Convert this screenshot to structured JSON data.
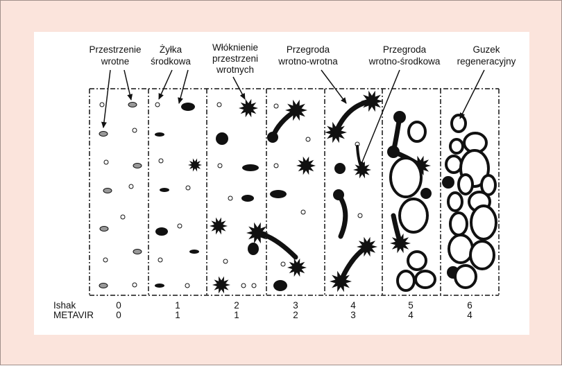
{
  "labels": [
    {
      "lines": [
        "Przestrzenie",
        "wrotne"
      ]
    },
    {
      "lines": [
        "Żyłka",
        "środkowa"
      ]
    },
    {
      "lines": [
        "Włóknienie",
        "przestrzeni",
        "wrotnych"
      ]
    },
    {
      "lines": [
        "Przegroda",
        "wrotno-wrotna"
      ]
    },
    {
      "lines": [
        "Przegroda",
        "wrotno-środkowa"
      ]
    },
    {
      "lines": [
        "Guzek",
        "regeneracyjny"
      ]
    }
  ],
  "table": {
    "rows": [
      {
        "name": "Ishak",
        "values": [
          0,
          1,
          2,
          3,
          4,
          5,
          6
        ]
      },
      {
        "name": "METAVIR",
        "values": [
          0,
          1,
          1,
          2,
          3,
          4,
          4
        ]
      }
    ]
  }
}
